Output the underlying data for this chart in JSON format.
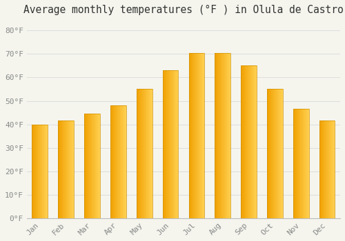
{
  "title": "Average monthly temperatures (°F ) in Olula de Castro",
  "months": [
    "Jan",
    "Feb",
    "Mar",
    "Apr",
    "May",
    "Jun",
    "Jul",
    "Aug",
    "Sep",
    "Oct",
    "Nov",
    "Dec"
  ],
  "values": [
    40,
    41.5,
    44.5,
    48,
    55,
    63,
    70.5,
    70.5,
    65,
    55,
    46.5,
    41.5
  ],
  "bar_color_left": "#F0A000",
  "bar_color_right": "#FFD050",
  "bar_edge_color": "#D09000",
  "background_color": "#F5F5EE",
  "grid_color": "#DDDDDD",
  "ylim": [
    0,
    85
  ],
  "yticks": [
    0,
    10,
    20,
    30,
    40,
    50,
    60,
    70,
    80
  ],
  "ytick_labels": [
    "0°F",
    "10°F",
    "20°F",
    "30°F",
    "40°F",
    "50°F",
    "60°F",
    "70°F",
    "80°F"
  ],
  "title_fontsize": 10.5,
  "tick_fontsize": 8,
  "title_color": "#333333",
  "tick_color": "#888888",
  "font_family": "monospace",
  "bar_width": 0.6,
  "n_gradient_steps": 50
}
